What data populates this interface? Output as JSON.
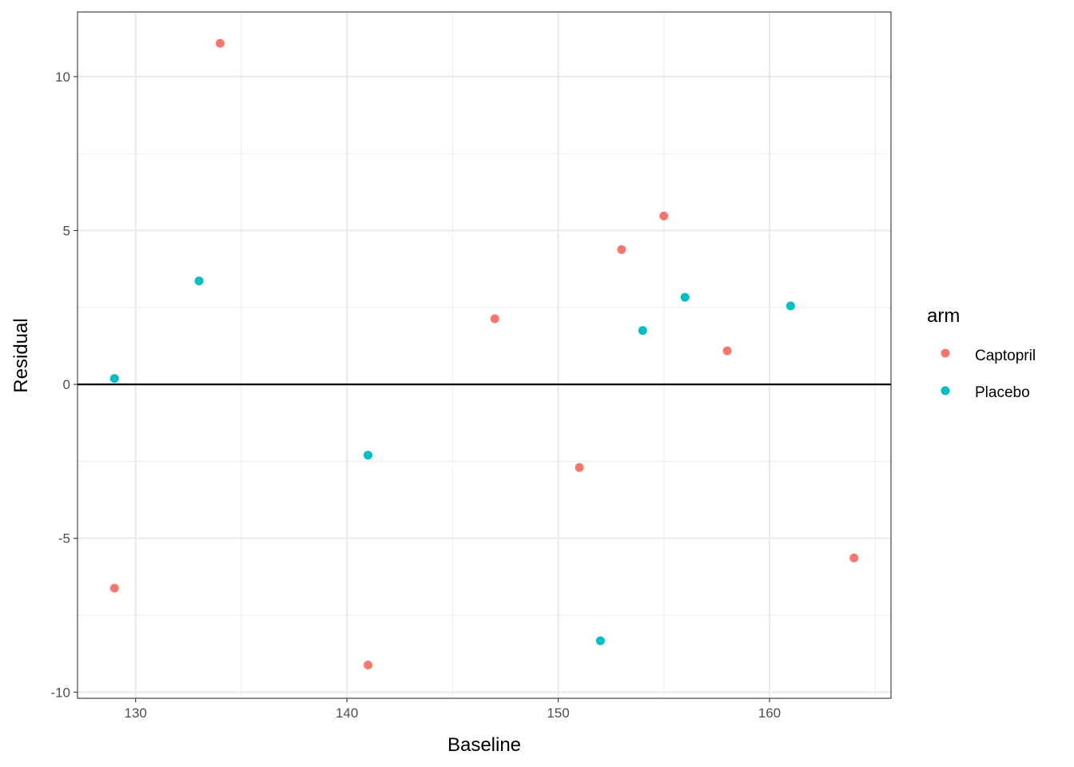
{
  "chart_data": {
    "type": "scatter",
    "title": "",
    "xlabel": "Baseline",
    "ylabel": "Residual",
    "xlim": [
      127.25,
      165.75
    ],
    "ylim": [
      -10.2,
      12.1
    ],
    "x_ticks": [
      130,
      140,
      150,
      160
    ],
    "x_tick_labels": [
      "130",
      "140",
      "150",
      "160"
    ],
    "y_ticks": [
      -10,
      -5,
      0,
      5,
      10
    ],
    "y_tick_labels": [
      "-10",
      "-5",
      "0",
      "5",
      "10"
    ],
    "grid": true,
    "reference_line_y": 0,
    "legend": {
      "title": "arm",
      "position": "right"
    },
    "series": [
      {
        "name": "Captopril",
        "color": "#F8766D",
        "points": [
          {
            "x": 134,
            "y": 11.08
          },
          {
            "x": 129,
            "y": -6.62
          },
          {
            "x": 141,
            "y": -9.12
          },
          {
            "x": 147,
            "y": 2.13
          },
          {
            "x": 151,
            "y": -2.7
          },
          {
            "x": 153,
            "y": 4.38
          },
          {
            "x": 155,
            "y": 5.47
          },
          {
            "x": 158,
            "y": 1.09
          },
          {
            "x": 164,
            "y": -5.64
          }
        ]
      },
      {
        "name": "Placebo",
        "color": "#00BFC4",
        "points": [
          {
            "x": 129,
            "y": 0.19
          },
          {
            "x": 133,
            "y": 3.36
          },
          {
            "x": 141,
            "y": -2.3
          },
          {
            "x": 152,
            "y": -8.33
          },
          {
            "x": 154,
            "y": 1.75
          },
          {
            "x": 156,
            "y": 2.83
          },
          {
            "x": 161,
            "y": 2.55
          }
        ]
      }
    ]
  }
}
